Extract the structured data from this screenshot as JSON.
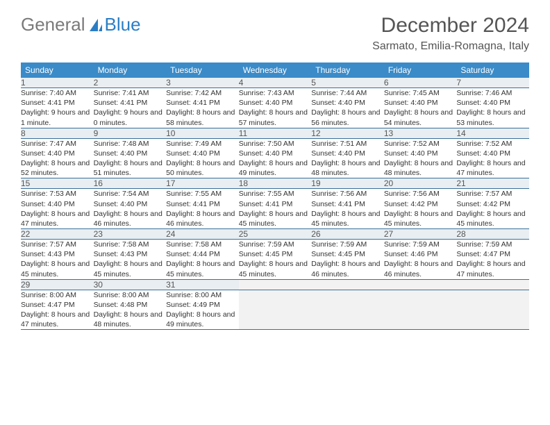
{
  "logo": {
    "text1": "General",
    "text2": "Blue"
  },
  "title": "December 2024",
  "location": "Sarmato, Emilia-Romagna, Italy",
  "day_headers": [
    "Sunday",
    "Monday",
    "Tuesday",
    "Wednesday",
    "Thursday",
    "Friday",
    "Saturday"
  ],
  "header_bg": "#3a8bc8",
  "header_fg": "#ffffff",
  "daynum_bg": "#e9eef2",
  "cell_border": "#3a6f9b",
  "weeks": [
    [
      {
        "num": "1",
        "sunrise": "Sunrise: 7:40 AM",
        "sunset": "Sunset: 4:41 PM",
        "daylight": "Daylight: 9 hours and 1 minute."
      },
      {
        "num": "2",
        "sunrise": "Sunrise: 7:41 AM",
        "sunset": "Sunset: 4:41 PM",
        "daylight": "Daylight: 9 hours and 0 minutes."
      },
      {
        "num": "3",
        "sunrise": "Sunrise: 7:42 AM",
        "sunset": "Sunset: 4:41 PM",
        "daylight": "Daylight: 8 hours and 58 minutes."
      },
      {
        "num": "4",
        "sunrise": "Sunrise: 7:43 AM",
        "sunset": "Sunset: 4:40 PM",
        "daylight": "Daylight: 8 hours and 57 minutes."
      },
      {
        "num": "5",
        "sunrise": "Sunrise: 7:44 AM",
        "sunset": "Sunset: 4:40 PM",
        "daylight": "Daylight: 8 hours and 56 minutes."
      },
      {
        "num": "6",
        "sunrise": "Sunrise: 7:45 AM",
        "sunset": "Sunset: 4:40 PM",
        "daylight": "Daylight: 8 hours and 54 minutes."
      },
      {
        "num": "7",
        "sunrise": "Sunrise: 7:46 AM",
        "sunset": "Sunset: 4:40 PM",
        "daylight": "Daylight: 8 hours and 53 minutes."
      }
    ],
    [
      {
        "num": "8",
        "sunrise": "Sunrise: 7:47 AM",
        "sunset": "Sunset: 4:40 PM",
        "daylight": "Daylight: 8 hours and 52 minutes."
      },
      {
        "num": "9",
        "sunrise": "Sunrise: 7:48 AM",
        "sunset": "Sunset: 4:40 PM",
        "daylight": "Daylight: 8 hours and 51 minutes."
      },
      {
        "num": "10",
        "sunrise": "Sunrise: 7:49 AM",
        "sunset": "Sunset: 4:40 PM",
        "daylight": "Daylight: 8 hours and 50 minutes."
      },
      {
        "num": "11",
        "sunrise": "Sunrise: 7:50 AM",
        "sunset": "Sunset: 4:40 PM",
        "daylight": "Daylight: 8 hours and 49 minutes."
      },
      {
        "num": "12",
        "sunrise": "Sunrise: 7:51 AM",
        "sunset": "Sunset: 4:40 PM",
        "daylight": "Daylight: 8 hours and 48 minutes."
      },
      {
        "num": "13",
        "sunrise": "Sunrise: 7:52 AM",
        "sunset": "Sunset: 4:40 PM",
        "daylight": "Daylight: 8 hours and 48 minutes."
      },
      {
        "num": "14",
        "sunrise": "Sunrise: 7:52 AM",
        "sunset": "Sunset: 4:40 PM",
        "daylight": "Daylight: 8 hours and 47 minutes."
      }
    ],
    [
      {
        "num": "15",
        "sunrise": "Sunrise: 7:53 AM",
        "sunset": "Sunset: 4:40 PM",
        "daylight": "Daylight: 8 hours and 47 minutes."
      },
      {
        "num": "16",
        "sunrise": "Sunrise: 7:54 AM",
        "sunset": "Sunset: 4:40 PM",
        "daylight": "Daylight: 8 hours and 46 minutes."
      },
      {
        "num": "17",
        "sunrise": "Sunrise: 7:55 AM",
        "sunset": "Sunset: 4:41 PM",
        "daylight": "Daylight: 8 hours and 46 minutes."
      },
      {
        "num": "18",
        "sunrise": "Sunrise: 7:55 AM",
        "sunset": "Sunset: 4:41 PM",
        "daylight": "Daylight: 8 hours and 45 minutes."
      },
      {
        "num": "19",
        "sunrise": "Sunrise: 7:56 AM",
        "sunset": "Sunset: 4:41 PM",
        "daylight": "Daylight: 8 hours and 45 minutes."
      },
      {
        "num": "20",
        "sunrise": "Sunrise: 7:56 AM",
        "sunset": "Sunset: 4:42 PM",
        "daylight": "Daylight: 8 hours and 45 minutes."
      },
      {
        "num": "21",
        "sunrise": "Sunrise: 7:57 AM",
        "sunset": "Sunset: 4:42 PM",
        "daylight": "Daylight: 8 hours and 45 minutes."
      }
    ],
    [
      {
        "num": "22",
        "sunrise": "Sunrise: 7:57 AM",
        "sunset": "Sunset: 4:43 PM",
        "daylight": "Daylight: 8 hours and 45 minutes."
      },
      {
        "num": "23",
        "sunrise": "Sunrise: 7:58 AM",
        "sunset": "Sunset: 4:43 PM",
        "daylight": "Daylight: 8 hours and 45 minutes."
      },
      {
        "num": "24",
        "sunrise": "Sunrise: 7:58 AM",
        "sunset": "Sunset: 4:44 PM",
        "daylight": "Daylight: 8 hours and 45 minutes."
      },
      {
        "num": "25",
        "sunrise": "Sunrise: 7:59 AM",
        "sunset": "Sunset: 4:45 PM",
        "daylight": "Daylight: 8 hours and 45 minutes."
      },
      {
        "num": "26",
        "sunrise": "Sunrise: 7:59 AM",
        "sunset": "Sunset: 4:45 PM",
        "daylight": "Daylight: 8 hours and 46 minutes."
      },
      {
        "num": "27",
        "sunrise": "Sunrise: 7:59 AM",
        "sunset": "Sunset: 4:46 PM",
        "daylight": "Daylight: 8 hours and 46 minutes."
      },
      {
        "num": "28",
        "sunrise": "Sunrise: 7:59 AM",
        "sunset": "Sunset: 4:47 PM",
        "daylight": "Daylight: 8 hours and 47 minutes."
      }
    ],
    [
      {
        "num": "29",
        "sunrise": "Sunrise: 8:00 AM",
        "sunset": "Sunset: 4:47 PM",
        "daylight": "Daylight: 8 hours and 47 minutes."
      },
      {
        "num": "30",
        "sunrise": "Sunrise: 8:00 AM",
        "sunset": "Sunset: 4:48 PM",
        "daylight": "Daylight: 8 hours and 48 minutes."
      },
      {
        "num": "31",
        "sunrise": "Sunrise: 8:00 AM",
        "sunset": "Sunset: 4:49 PM",
        "daylight": "Daylight: 8 hours and 49 minutes."
      },
      {
        "empty": true
      },
      {
        "empty": true
      },
      {
        "empty": true
      },
      {
        "empty": true
      }
    ]
  ]
}
